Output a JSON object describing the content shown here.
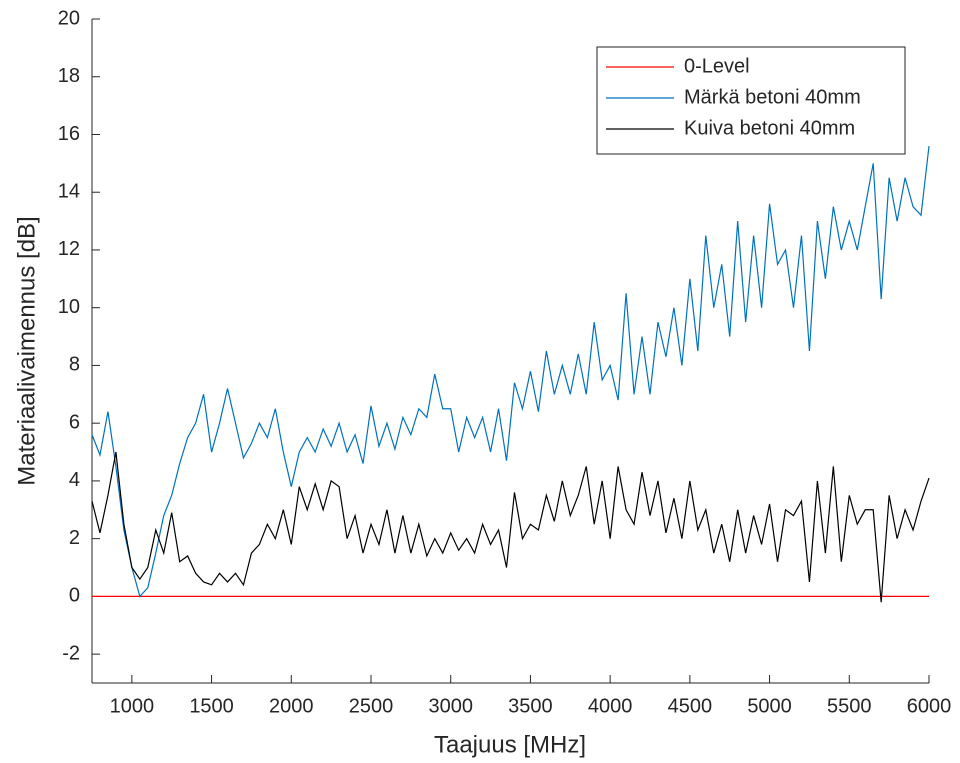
{
  "chart_data": {
    "type": "line",
    "xlabel": "Taajuus [MHz]",
    "ylabel": "Materiaalivaimennus [dB]",
    "xlim": [
      750,
      6000
    ],
    "ylim": [
      -3,
      20
    ],
    "xticks": [
      1000,
      1500,
      2000,
      2500,
      3000,
      3500,
      4000,
      4500,
      5000,
      5500,
      6000
    ],
    "yticks": [
      -2,
      0,
      2,
      4,
      6,
      8,
      10,
      12,
      14,
      16,
      18,
      20
    ],
    "legend": "upper right",
    "x": [
      750,
      800,
      850,
      900,
      950,
      1000,
      1050,
      1100,
      1150,
      1200,
      1250,
      1300,
      1350,
      1400,
      1450,
      1500,
      1550,
      1600,
      1650,
      1700,
      1750,
      1800,
      1850,
      1900,
      1950,
      2000,
      2050,
      2100,
      2150,
      2200,
      2250,
      2300,
      2350,
      2400,
      2450,
      2500,
      2550,
      2600,
      2650,
      2700,
      2750,
      2800,
      2850,
      2900,
      2950,
      3000,
      3050,
      3100,
      3150,
      3200,
      3250,
      3300,
      3350,
      3400,
      3450,
      3500,
      3550,
      3600,
      3650,
      3700,
      3750,
      3800,
      3850,
      3900,
      3950,
      4000,
      4050,
      4100,
      4150,
      4200,
      4250,
      4300,
      4350,
      4400,
      4450,
      4500,
      4550,
      4600,
      4650,
      4700,
      4750,
      4800,
      4850,
      4900,
      4950,
      5000,
      5050,
      5100,
      5150,
      5200,
      5250,
      5300,
      5350,
      5400,
      5450,
      5500,
      5550,
      5600,
      5650,
      5700,
      5750,
      5800,
      5850,
      5900,
      5950,
      6000
    ],
    "series": [
      {
        "name": "0-Level",
        "color": "#ff0000",
        "x": [
          750,
          6000
        ],
        "values": [
          0,
          0
        ]
      },
      {
        "name": "Märkä betoni 40mm",
        "color": "#0072bd",
        "values": [
          5.6,
          4.9,
          6.4,
          4.5,
          2.3,
          1.0,
          0.0,
          0.3,
          1.5,
          2.8,
          3.5,
          4.6,
          5.5,
          6.0,
          7.0,
          5.0,
          6.0,
          7.2,
          6.0,
          4.8,
          5.3,
          6.0,
          5.5,
          6.5,
          5.0,
          3.8,
          5.0,
          5.5,
          5.0,
          5.8,
          5.2,
          6.0,
          5.0,
          5.6,
          4.6,
          6.6,
          5.2,
          6.0,
          5.1,
          6.2,
          5.6,
          6.5,
          6.2,
          7.7,
          6.5,
          6.5,
          5.0,
          6.2,
          5.5,
          6.2,
          5.0,
          6.5,
          4.7,
          7.4,
          6.5,
          7.8,
          6.4,
          8.5,
          7.0,
          8.0,
          7.0,
          8.4,
          7.0,
          9.5,
          7.5,
          8.0,
          6.8,
          10.5,
          7.0,
          9.0,
          7.0,
          9.5,
          8.3,
          10.0,
          8.0,
          11.0,
          8.5,
          12.5,
          10.0,
          11.5,
          9.0,
          13.0,
          9.5,
          12.5,
          10.0,
          13.6,
          11.5,
          12.0,
          10.0,
          12.5,
          8.5,
          13.0,
          11.0,
          13.5,
          12.0,
          13.0,
          12.0,
          13.5,
          15.0,
          10.3,
          14.5,
          13.0,
          14.5,
          13.5,
          13.2,
          15.6
        ]
      },
      {
        "name": "Kuiva betoni 40mm",
        "color": "#000000",
        "values": [
          3.3,
          2.2,
          3.5,
          5.0,
          2.5,
          1.0,
          0.6,
          1.0,
          2.3,
          1.5,
          2.9,
          1.2,
          1.4,
          0.8,
          0.5,
          0.4,
          0.8,
          0.5,
          0.8,
          0.4,
          1.5,
          1.8,
          2.5,
          2.0,
          3.0,
          1.8,
          3.8,
          3.0,
          3.9,
          3.0,
          4.0,
          3.8,
          2.0,
          2.8,
          1.5,
          2.5,
          1.8,
          3.0,
          1.5,
          2.8,
          1.5,
          2.5,
          1.4,
          2.0,
          1.5,
          2.2,
          1.6,
          2.0,
          1.5,
          2.5,
          1.8,
          2.3,
          1.0,
          3.6,
          2.0,
          2.5,
          2.3,
          3.5,
          2.6,
          4.0,
          2.8,
          3.5,
          4.5,
          2.5,
          4.0,
          2.0,
          4.5,
          3.0,
          2.5,
          4.3,
          2.8,
          4.0,
          2.2,
          3.4,
          2.0,
          4.0,
          2.3,
          3.0,
          1.5,
          2.5,
          1.2,
          3.0,
          1.5,
          2.8,
          1.8,
          3.2,
          1.2,
          3.0,
          2.8,
          3.3,
          0.5,
          4.0,
          1.5,
          4.5,
          1.2,
          3.5,
          2.5,
          3.0,
          3.0,
          -0.2,
          3.5,
          2.0,
          3.0,
          2.3,
          3.3,
          4.1
        ]
      }
    ]
  }
}
